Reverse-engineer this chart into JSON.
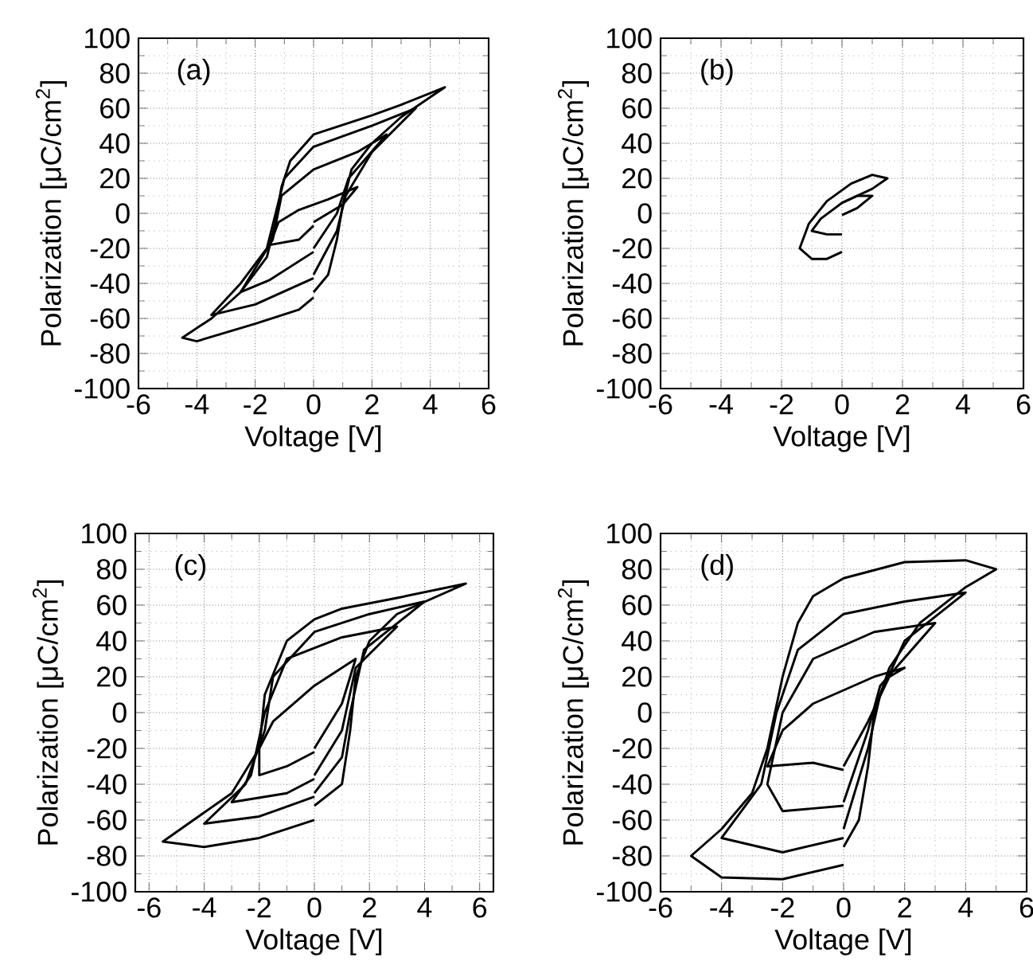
{
  "chart_data": [
    {
      "type": "line",
      "xlabel": "Voltage [V]",
      "ylabel": "Polarization [μC/cm$^{2}$]",
      "annotations": [
        "(a)"
      ],
      "xlim": [
        -6,
        6
      ],
      "ylim": [
        -100,
        100
      ],
      "xticks": [
        -6,
        -4,
        -2,
        0,
        2,
        4,
        6
      ],
      "yticks": [
        -100,
        -80,
        -60,
        -40,
        -20,
        0,
        20,
        40,
        60,
        80,
        100
      ],
      "grid": true,
      "series": [
        {
          "color": "#000000",
          "x": [
            0,
            0.5,
            0.8,
            1,
            1.3,
            2,
            3,
            4.5,
            3,
            2,
            0,
            -0.8,
            -1.1,
            -1.3,
            -1.6,
            -2.5,
            -3.5,
            -4.5,
            -4,
            -2,
            -0.5,
            0
          ],
          "values": [
            -45,
            -35,
            -15,
            5,
            25,
            40,
            55,
            72,
            62,
            56,
            45,
            30,
            15,
            -5,
            -25,
            -45,
            -60,
            -71,
            -73,
            -63,
            -55,
            -48
          ]
        },
        {
          "color": "#000000",
          "x": [
            0,
            0.8,
            1.1,
            2,
            3.5,
            2,
            0,
            -1,
            -1.3,
            -1.6,
            -2.5,
            -3.5,
            -2,
            0
          ],
          "values": [
            -35,
            -10,
            10,
            35,
            60,
            50,
            38,
            20,
            0,
            -20,
            -40,
            -58,
            -52,
            -37
          ]
        },
        {
          "color": "#000000",
          "x": [
            0,
            0.8,
            1.2,
            2.5,
            1.5,
            0,
            -1.1,
            -1.4,
            -2.5,
            -1.5,
            0
          ],
          "values": [
            -20,
            0,
            20,
            45,
            35,
            25,
            10,
            -15,
            -45,
            -38,
            -22
          ]
        },
        {
          "color": "#000000",
          "x": [
            0,
            1,
            1.5,
            0.5,
            -0.5,
            -1.2,
            -1.5,
            -0.5,
            0
          ],
          "values": [
            -5,
            5,
            15,
            8,
            2,
            -5,
            -18,
            -15,
            -7
          ]
        }
      ]
    },
    {
      "type": "line",
      "xlabel": "Voltage [V]",
      "ylabel": "Polarization [μC/cm$^{2}$]",
      "annotations": [
        "(b)"
      ],
      "xlim": [
        -6,
        6
      ],
      "ylim": [
        -100,
        100
      ],
      "xticks": [
        -6,
        -4,
        -2,
        0,
        2,
        4,
        6
      ],
      "yticks": [
        -100,
        -80,
        -60,
        -40,
        -20,
        0,
        20,
        40,
        60,
        80,
        100
      ],
      "grid": true,
      "series": [
        {
          "color": "#000000",
          "x": [
            0,
            -0.5,
            -1,
            -1.4,
            -1.1,
            -0.5,
            0.3,
            1,
            1.5,
            1,
            0.5,
            0
          ],
          "values": [
            -22,
            -26,
            -26,
            -20,
            -6,
            7,
            17,
            22,
            20,
            14,
            10,
            6
          ]
        },
        {
          "color": "#000000",
          "x": [
            0,
            0.5,
            1,
            0.5,
            0,
            -0.7,
            -1,
            -0.5,
            0
          ],
          "values": [
            -1,
            3,
            10,
            10,
            6,
            -3,
            -10,
            -12,
            -12
          ]
        }
      ]
    },
    {
      "type": "line",
      "xlabel": "Voltage [V]",
      "ylabel": "Polarization [μC/cm$^{2}$]",
      "annotations": [
        "(c)"
      ],
      "xlim": [
        -6.5,
        6.5
      ],
      "ylim": [
        -100,
        100
      ],
      "xticks": [
        -6,
        -4,
        -2,
        0,
        2,
        4,
        6
      ],
      "yticks": [
        -100,
        -80,
        -60,
        -40,
        -20,
        0,
        20,
        40,
        60,
        80,
        100
      ],
      "grid": true,
      "series": [
        {
          "color": "#000000",
          "x": [
            0,
            1,
            1.3,
            1.5,
            2,
            3,
            5.5,
            3,
            1,
            0,
            -1,
            -1.8,
            -2,
            -3,
            -5.5,
            -4,
            -2,
            0
          ],
          "values": [
            -52,
            -40,
            -10,
            20,
            40,
            55,
            72,
            64,
            58,
            52,
            40,
            10,
            -20,
            -45,
            -72,
            -75,
            -70,
            -60
          ]
        },
        {
          "color": "#000000",
          "x": [
            0,
            1,
            1.3,
            1.8,
            4,
            2,
            0,
            -1.5,
            -1.8,
            -2.5,
            -4,
            -2,
            0
          ],
          "values": [
            -45,
            -25,
            0,
            35,
            62,
            55,
            45,
            20,
            -10,
            -40,
            -62,
            -58,
            -47
          ]
        },
        {
          "color": "#000000",
          "x": [
            0,
            1,
            1.5,
            3,
            1,
            -1,
            -1.8,
            -2.3,
            -3,
            -1,
            0
          ],
          "values": [
            -35,
            -10,
            25,
            48,
            42,
            30,
            0,
            -35,
            -50,
            -45,
            -37
          ]
        },
        {
          "color": "#000000",
          "x": [
            0,
            1,
            1.5,
            0,
            -1.5,
            -2,
            -2,
            -1,
            0
          ],
          "values": [
            -20,
            5,
            30,
            15,
            -5,
            -20,
            -35,
            -30,
            -22
          ]
        }
      ]
    },
    {
      "type": "line",
      "xlabel": "Voltage [V]",
      "ylabel": "Polarization [μC/cm$^{2}$]",
      "annotations": [
        "(d)"
      ],
      "xlim": [
        -6,
        6
      ],
      "ylim": [
        -100,
        100
      ],
      "xticks": [
        -6,
        -4,
        -2,
        0,
        2,
        4,
        6
      ],
      "yticks": [
        -100,
        -80,
        -60,
        -40,
        -20,
        0,
        20,
        40,
        60,
        80,
        100
      ],
      "grid": true,
      "series": [
        {
          "color": "#000000",
          "x": [
            0,
            0.5,
            0.8,
            1,
            1.5,
            2.5,
            4,
            5,
            4,
            2,
            0,
            -1,
            -1.5,
            -2,
            -2.5,
            -3,
            -4,
            -5,
            -4,
            -2,
            0
          ],
          "values": [
            -75,
            -60,
            -30,
            0,
            25,
            50,
            70,
            80,
            85,
            84,
            75,
            65,
            50,
            20,
            -20,
            -45,
            -65,
            -80,
            -92,
            -93,
            -85
          ]
        },
        {
          "color": "#000000",
          "x": [
            0,
            0.8,
            1.2,
            2,
            4,
            2,
            0,
            -1.5,
            -2.2,
            -2.7,
            -4,
            -2,
            0
          ],
          "values": [
            -65,
            -20,
            10,
            40,
            67,
            62,
            55,
            35,
            0,
            -40,
            -70,
            -78,
            -70
          ]
        },
        {
          "color": "#000000",
          "x": [
            0,
            0.8,
            1.2,
            3,
            1,
            -1,
            -2,
            -2.5,
            -2,
            0
          ],
          "values": [
            -50,
            -10,
            15,
            50,
            45,
            30,
            0,
            -40,
            -55,
            -52
          ]
        },
        {
          "color": "#000000",
          "x": [
            0,
            0.8,
            1.5,
            2,
            1,
            -1,
            -2,
            -2.5,
            -1,
            0
          ],
          "values": [
            -30,
            -5,
            20,
            25,
            20,
            5,
            -10,
            -30,
            -28,
            -32
          ]
        }
      ]
    }
  ]
}
